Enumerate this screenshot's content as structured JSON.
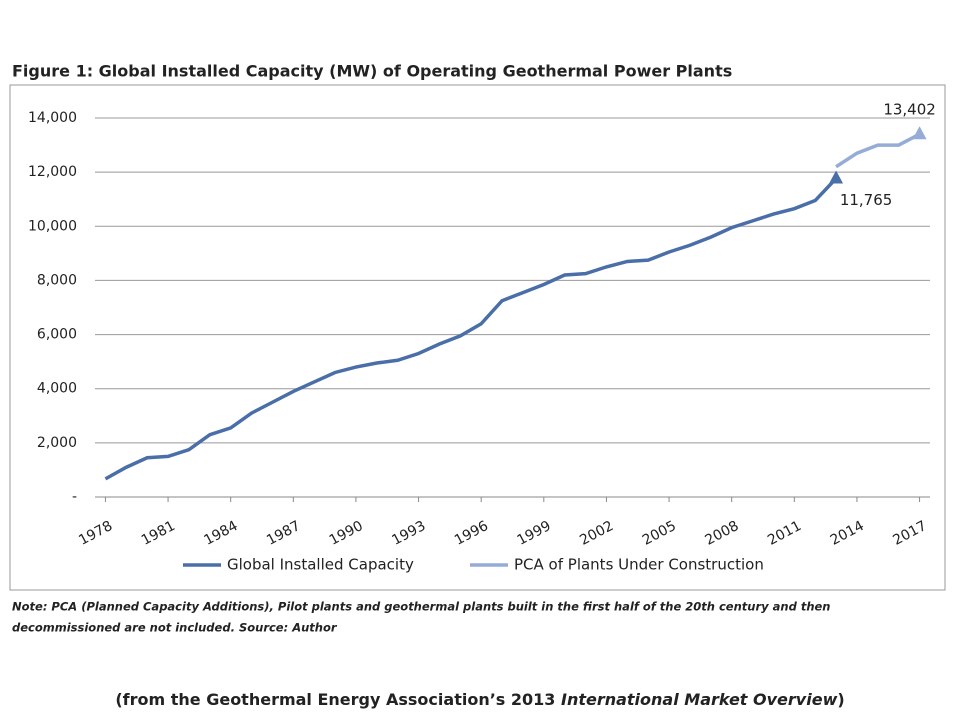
{
  "chart_data": {
    "type": "line",
    "title": "Figure 1: Global Installed Capacity (MW) of Operating Geothermal Power Plants",
    "xlim": [
      1977.5,
      2017.5
    ],
    "xticks": [
      1978,
      1981,
      1984,
      1987,
      1990,
      1993,
      1996,
      1999,
      2002,
      2005,
      2008,
      2011,
      2014,
      2017
    ],
    "ylim": [
      0,
      14000
    ],
    "yticks": [
      {
        "value": 0,
        "label": "-"
      },
      {
        "value": 2000,
        "label": "2,000"
      },
      {
        "value": 4000,
        "label": "4,000"
      },
      {
        "value": 6000,
        "label": "6,000"
      },
      {
        "value": 8000,
        "label": "8,000"
      },
      {
        "value": 10000,
        "label": "10,000"
      },
      {
        "value": 12000,
        "label": "12,000"
      },
      {
        "value": 14000,
        "label": "14,000"
      }
    ],
    "grid": true,
    "legend": "bottom",
    "series": [
      {
        "name": "Global Installed Capacity",
        "color": "#4a6ea8",
        "x": [
          1978,
          1979,
          1980,
          1981,
          1982,
          1983,
          1984,
          1985,
          1986,
          1987,
          1988,
          1989,
          1990,
          1991,
          1992,
          1993,
          1994,
          1995,
          1996,
          1997,
          1998,
          1999,
          2000,
          2001,
          2002,
          2003,
          2004,
          2005,
          2006,
          2007,
          2008,
          2009,
          2010,
          2011,
          2012,
          2013
        ],
        "values": [
          670,
          1100,
          1450,
          1500,
          1750,
          2300,
          2550,
          3100,
          3500,
          3900,
          4250,
          4600,
          4800,
          4950,
          5050,
          5300,
          5650,
          5950,
          6400,
          7250,
          7550,
          7850,
          8200,
          8250,
          8500,
          8700,
          8750,
          9050,
          9300,
          9600,
          9950,
          10200,
          10450,
          10650,
          10950,
          11765
        ],
        "value_labels": [
          null,
          null,
          null,
          null,
          null,
          null,
          null,
          null,
          null,
          null,
          null,
          null,
          null,
          null,
          null,
          null,
          null,
          null,
          null,
          null,
          null,
          null,
          null,
          null,
          null,
          null,
          null,
          null,
          null,
          null,
          null,
          null,
          null,
          null,
          null,
          "11,765"
        ]
      },
      {
        "name": "PCA of Plants Under Construction",
        "color": "#95acd6",
        "x": [
          2013,
          2014,
          2015,
          2016,
          2017
        ],
        "values": [
          12200,
          12700,
          13000,
          13000,
          13402
        ],
        "value_labels": [
          null,
          null,
          null,
          null,
          "13,402"
        ]
      }
    ],
    "note": [
      "Note: PCA (Planned Capacity Additions), Pilot plants and geothermal plants built in the first half of the 20th century and then",
      "decommissioned are not included.  Source: Author"
    ],
    "source": {
      "prefix": "(from the Geothermal Energy Association’s 2013 ",
      "italic": "International Market Overview",
      "suffix": ")"
    }
  }
}
